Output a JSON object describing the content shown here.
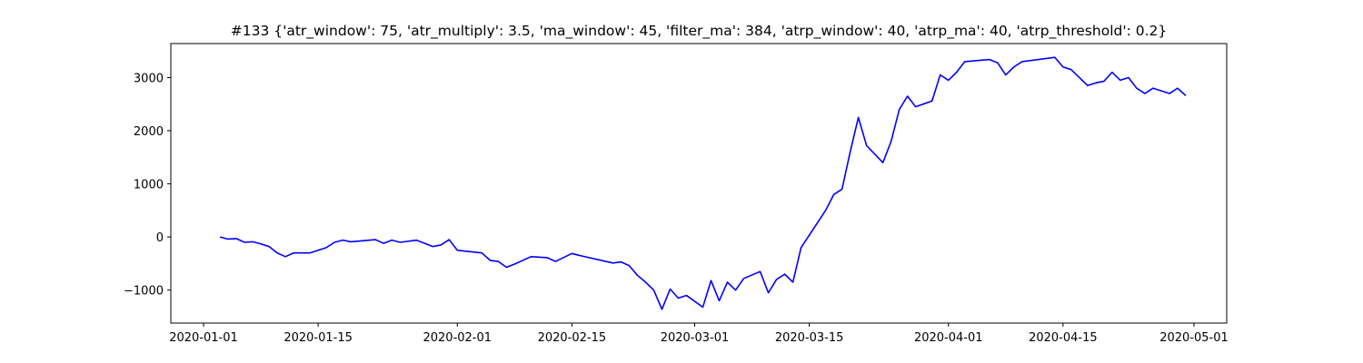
{
  "chart_data": {
    "type": "line",
    "title": "#133 {'atr_window': 75, 'atr_multiply': 3.5, 'ma_window': 45, 'filter_ma': 384, 'atrp_window': 40, 'atrp_ma': 40, 'atrp_threshold': 0.2}",
    "x": [
      "2020-01-03",
      "2020-01-04",
      "2020-01-05",
      "2020-01-06",
      "2020-01-07",
      "2020-01-08",
      "2020-01-09",
      "2020-01-10",
      "2020-01-11",
      "2020-01-12",
      "2020-01-14",
      "2020-01-15",
      "2020-01-16",
      "2020-01-17",
      "2020-01-18",
      "2020-01-19",
      "2020-01-22",
      "2020-01-23",
      "2020-01-24",
      "2020-01-25",
      "2020-01-27",
      "2020-01-29",
      "2020-01-30",
      "2020-01-31",
      "2020-02-01",
      "2020-02-04",
      "2020-02-05",
      "2020-02-06",
      "2020-02-07",
      "2020-02-08",
      "2020-02-10",
      "2020-02-12",
      "2020-02-13",
      "2020-02-15",
      "2020-02-16",
      "2020-02-20",
      "2020-02-21",
      "2020-02-22",
      "2020-02-23",
      "2020-02-24",
      "2020-02-25",
      "2020-02-26",
      "2020-02-27",
      "2020-02-28",
      "2020-02-29",
      "2020-03-02",
      "2020-03-03",
      "2020-03-04",
      "2020-03-05",
      "2020-03-06",
      "2020-03-07",
      "2020-03-09",
      "2020-03-10",
      "2020-03-11",
      "2020-03-12",
      "2020-03-13",
      "2020-03-14",
      "2020-03-17",
      "2020-03-18",
      "2020-03-19",
      "2020-03-20",
      "2020-03-21",
      "2020-03-22",
      "2020-03-24",
      "2020-03-25",
      "2020-03-26",
      "2020-03-27",
      "2020-03-28",
      "2020-03-30",
      "2020-03-31",
      "2020-04-01",
      "2020-04-02",
      "2020-04-03",
      "2020-04-06",
      "2020-04-07",
      "2020-04-08",
      "2020-04-09",
      "2020-04-10",
      "2020-04-14",
      "2020-04-15",
      "2020-04-16",
      "2020-04-17",
      "2020-04-18",
      "2020-04-19",
      "2020-04-20",
      "2020-04-21",
      "2020-04-22",
      "2020-04-23",
      "2020-04-24",
      "2020-04-25",
      "2020-04-26",
      "2020-04-28",
      "2020-04-29",
      "2020-04-30"
    ],
    "series": [
      {
        "color": "#0000ff",
        "values": [
          0,
          -40,
          -30,
          -100,
          -90,
          -130,
          -180,
          -300,
          -370,
          -300,
          -300,
          -250,
          -200,
          -100,
          -60,
          -90,
          -50,
          -120,
          -60,
          -100,
          -60,
          -180,
          -150,
          -50,
          -250,
          -300,
          -440,
          -460,
          -570,
          -510,
          -370,
          -390,
          -460,
          -310,
          -350,
          -490,
          -470,
          -540,
          -720,
          -850,
          -1000,
          -1360,
          -980,
          -1150,
          -1100,
          -1320,
          -820,
          -1200,
          -850,
          -1000,
          -780,
          -650,
          -1050,
          -800,
          -700,
          -850,
          -200,
          500,
          800,
          900,
          1600,
          2250,
          1720,
          1400,
          1800,
          2400,
          2650,
          2450,
          2560,
          3050,
          2950,
          3100,
          3300,
          3340,
          3280,
          3050,
          3200,
          3300,
          3380,
          3200,
          3150,
          3000,
          2850,
          2900,
          2930,
          3100,
          2950,
          3000,
          2800,
          2700,
          2800,
          2700,
          2800,
          2660
        ]
      }
    ],
    "xlim": [
      "2019-12-28",
      "2020-05-05"
    ],
    "xticks": [
      "2020-01-01",
      "2020-01-15",
      "2020-02-01",
      "2020-02-15",
      "2020-03-01",
      "2020-03-15",
      "2020-04-01",
      "2020-04-15",
      "2020-05-01"
    ],
    "ylim": [
      -1620,
      3640
    ],
    "yticks": [
      {
        "value": -1000,
        "label": "−1000"
      },
      0,
      1000,
      2000,
      3000
    ],
    "grid": false
  }
}
